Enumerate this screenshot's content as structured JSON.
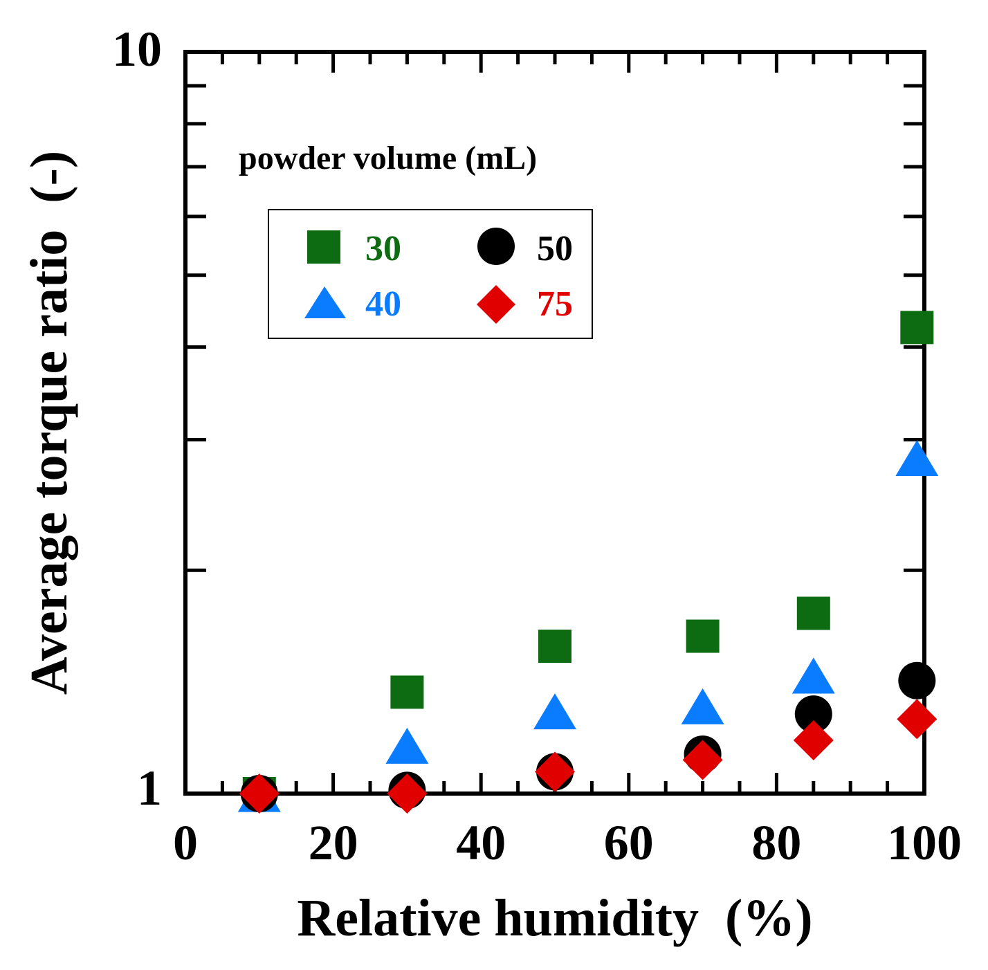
{
  "chart_data": {
    "type": "scatter",
    "xlabel": "Relative humidity  (%)",
    "ylabel": "Average torque ratio  (-)",
    "xlim": [
      0,
      100
    ],
    "ylim": [
      1,
      10
    ],
    "yscale": "log",
    "x_ticks": [
      "0",
      "20",
      "40",
      "60",
      "80",
      "100"
    ],
    "y_ticks": [
      "1",
      "10"
    ],
    "legend_title": "powder volume (mL)",
    "legend_position": "top-left",
    "series": [
      {
        "name": "30",
        "marker": "square",
        "color": "#0d6b12",
        "x": [
          10,
          30,
          50,
          70,
          85,
          99
        ],
        "y": [
          1.0,
          1.37,
          1.58,
          1.63,
          1.75,
          4.25
        ]
      },
      {
        "name": "40",
        "marker": "triangle",
        "color": "#0a7cff",
        "x": [
          10,
          30,
          50,
          70,
          85,
          99
        ],
        "y": [
          0.99,
          1.15,
          1.28,
          1.3,
          1.43,
          2.81
        ]
      },
      {
        "name": "50",
        "marker": "circle",
        "color": "#000000",
        "x": [
          10,
          30,
          50,
          70,
          85,
          99
        ],
        "y": [
          1.0,
          1.01,
          1.07,
          1.13,
          1.28,
          1.42
        ]
      },
      {
        "name": "75",
        "marker": "diamond",
        "color": "#e00000",
        "x": [
          10,
          30,
          50,
          70,
          85,
          99
        ],
        "y": [
          1.0,
          1.0,
          1.07,
          1.11,
          1.18,
          1.26
        ]
      }
    ]
  }
}
